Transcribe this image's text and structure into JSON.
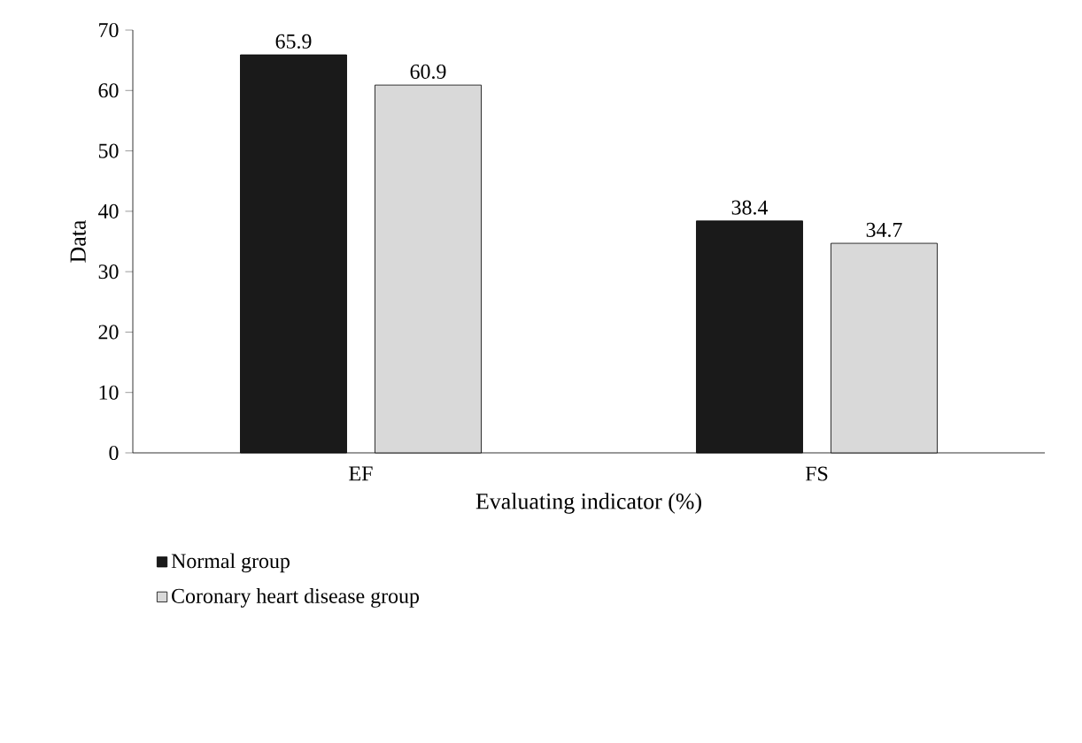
{
  "chart_data": {
    "type": "bar",
    "xlabel": "Evaluating indicator (%)",
    "ylabel": "Data",
    "categories": [
      "EF",
      "FS"
    ],
    "series": [
      {
        "name": "Normal group",
        "color": "#1a1a1a",
        "values": [
          65.9,
          38.4
        ]
      },
      {
        "name": "Coronary heart disease group",
        "color": "#d9d9d9",
        "values": [
          60.9,
          34.7
        ]
      }
    ],
    "ylim": [
      0,
      70
    ],
    "yticks": [
      0,
      10,
      20,
      30,
      40,
      50,
      60,
      70
    ],
    "data_labels": true,
    "legend": "bottom left"
  }
}
